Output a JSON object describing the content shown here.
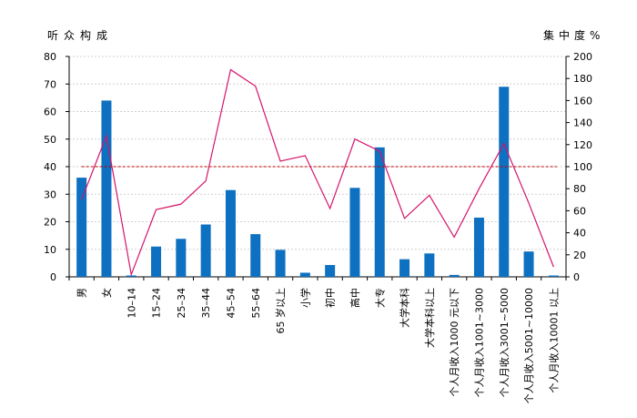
{
  "chart_data": {
    "type": "bar",
    "left_axis_label": "听众构成",
    "right_axis_label": "集中度%",
    "ylim_left": [
      0,
      80
    ],
    "yticks_left": [
      0,
      10,
      20,
      30,
      40,
      50,
      60,
      70,
      80
    ],
    "ylim_right": [
      0,
      200
    ],
    "yticks_right": [
      0,
      20,
      40,
      60,
      80,
      100,
      120,
      140,
      160,
      180,
      200
    ],
    "grid": true,
    "categories": [
      "男",
      "女",
      "10–14",
      "15–24",
      "25–34",
      "35–44",
      "45–54",
      "55–64",
      "65 岁以上",
      "小学",
      "初中",
      "高中",
      "大专",
      "大学本科",
      "大学本科以上",
      "个人月收入1000 元以下",
      "个人月收入1001~3000",
      "个人月收入3001~5000",
      "个人月收入5001~10000",
      "个人月收入10001 以上"
    ],
    "series": [
      {
        "type": "bar",
        "axis": "left",
        "color": "#0e70c0",
        "values": [
          36,
          64,
          0.5,
          11,
          13.8,
          19,
          31.5,
          15.5,
          9.8,
          1.5,
          4.3,
          32.3,
          47,
          6.4,
          8.5,
          0.7,
          21.5,
          69,
          9.2,
          0.5
        ]
      },
      {
        "type": "line",
        "axis": "right",
        "color": "#d4146a",
        "values": [
          70,
          128,
          2,
          61,
          66,
          87,
          188,
          173,
          105,
          110,
          62,
          125,
          114,
          53,
          74,
          36,
          80,
          121,
          67,
          9
        ]
      },
      {
        "type": "reference",
        "axis": "right",
        "style": "dashed",
        "color": "#c00000",
        "value": 100
      }
    ]
  }
}
